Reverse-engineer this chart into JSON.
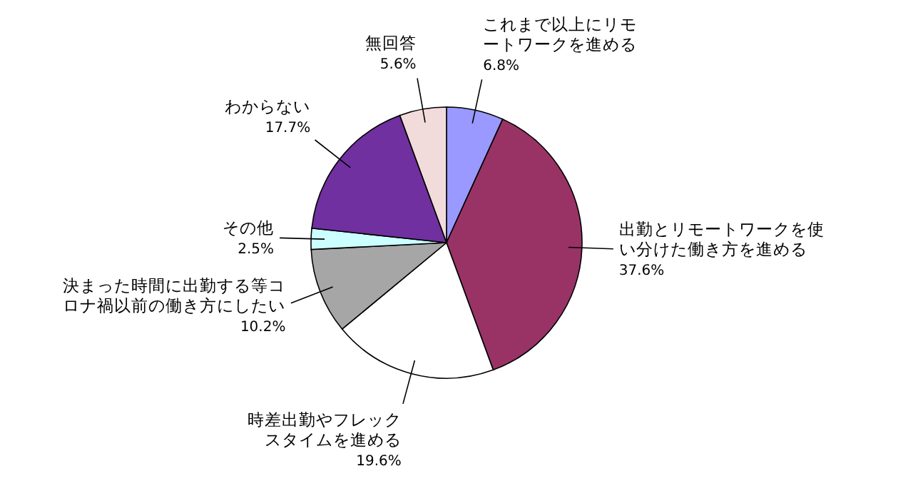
{
  "chart_data": {
    "type": "pie",
    "categories": [
      "これまで以上にリモートワークを進める",
      "出勤とリモートワークを使い分けた働き方を進める",
      "時差出勤やフレックスタイムを進める",
      "決まった時間に出勤する等コロナ禍以前の働き方にしたい",
      "その他",
      "わからない",
      "無回答"
    ],
    "values": [
      6.8,
      37.6,
      19.6,
      10.2,
      2.5,
      17.7,
      5.6
    ],
    "colors": [
      "#9999ff",
      "#993366",
      "#ffffff",
      "#a6a6a6",
      "#ccffff",
      "#7030a0",
      "#f2dcdb"
    ],
    "value_labels": [
      "6.8%",
      "37.6%",
      "19.6%",
      "10.2%",
      "2.5%",
      "17.7%",
      "5.6%"
    ]
  }
}
